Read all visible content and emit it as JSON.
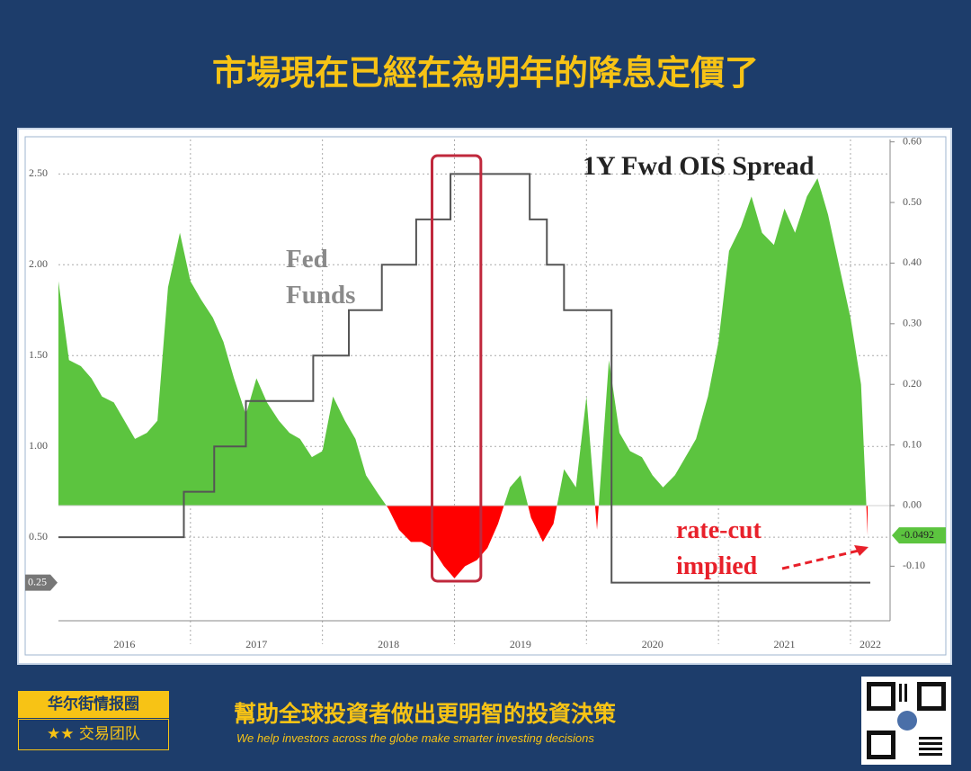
{
  "header": {
    "title": "市場現在已經在為明年的降息定價了"
  },
  "chart_data": {
    "type": "step-area",
    "series": [
      {
        "name": "1Y Fwd OIS Spread",
        "axis": "y2",
        "color": "#5cc43f",
        "negative_color": "#ff0000",
        "x": [
          2016.0,
          2016.08,
          2016.17,
          2016.25,
          2016.33,
          2016.42,
          2016.5,
          2016.58,
          2016.67,
          2016.75,
          2016.83,
          2016.92,
          2017.0,
          2017.08,
          2017.17,
          2017.25,
          2017.33,
          2017.42,
          2017.5,
          2017.58,
          2017.67,
          2017.75,
          2017.83,
          2017.92,
          2018.0,
          2018.08,
          2018.17,
          2018.25,
          2018.33,
          2018.42,
          2018.5,
          2018.58,
          2018.67,
          2018.75,
          2018.83,
          2018.92,
          2019.0,
          2019.08,
          2019.17,
          2019.25,
          2019.33,
          2019.42,
          2019.5,
          2019.58,
          2019.67,
          2019.75,
          2019.83,
          2019.92,
          2020.0,
          2020.08,
          2020.17,
          2020.25,
          2020.33,
          2020.42,
          2020.5,
          2020.58,
          2020.67,
          2020.75,
          2020.83,
          2020.92,
          2021.0,
          2021.08,
          2021.17,
          2021.25,
          2021.33,
          2021.42,
          2021.5,
          2021.58,
          2021.67,
          2021.75,
          2021.83,
          2021.92,
          2022.0,
          2022.08,
          2022.13
        ],
        "values": [
          0.37,
          0.24,
          0.23,
          0.21,
          0.18,
          0.17,
          0.14,
          0.11,
          0.12,
          0.14,
          0.36,
          0.45,
          0.37,
          0.34,
          0.31,
          0.27,
          0.21,
          0.15,
          0.21,
          0.17,
          0.14,
          0.12,
          0.11,
          0.08,
          0.09,
          0.18,
          0.14,
          0.11,
          0.05,
          0.02,
          -0.005,
          -0.04,
          -0.06,
          -0.06,
          -0.07,
          -0.1,
          -0.12,
          -0.1,
          -0.09,
          -0.07,
          -0.03,
          0.03,
          0.05,
          -0.02,
          -0.06,
          -0.03,
          0.06,
          0.03,
          0.18,
          -0.04,
          0.24,
          0.12,
          0.09,
          0.08,
          0.05,
          0.03,
          0.05,
          0.08,
          0.11,
          0.18,
          0.27,
          0.42,
          0.46,
          0.51,
          0.45,
          0.43,
          0.49,
          0.45,
          0.51,
          0.54,
          0.48,
          0.39,
          0.31,
          0.2,
          -0.0492
        ]
      },
      {
        "name": "Fed Funds",
        "axis": "y",
        "color": "#555555",
        "x": [
          2016.0,
          2016.95,
          2017.18,
          2017.42,
          2017.93,
          2018.2,
          2018.45,
          2018.71,
          2018.97,
          2019.57,
          2019.7,
          2019.83,
          2020.19,
          2022.15
        ],
        "values": [
          0.5,
          0.75,
          1.0,
          1.25,
          1.5,
          1.75,
          2.0,
          2.25,
          2.5,
          2.25,
          2.0,
          1.75,
          0.25,
          0.25
        ]
      }
    ],
    "xlim": [
      2016,
      2022.3
    ],
    "xticks": [
      {
        "value": 2016.5,
        "label": "2016"
      },
      {
        "value": 2017.5,
        "label": "2017"
      },
      {
        "value": 2018.5,
        "label": "2018"
      },
      {
        "value": 2019.5,
        "label": "2019"
      },
      {
        "value": 2020.5,
        "label": "2020"
      },
      {
        "value": 2021.5,
        "label": "2021"
      },
      {
        "value": 2022.15,
        "label": "2022"
      }
    ],
    "x_grid_lines": [
      2017,
      2018,
      2019,
      2020,
      2021,
      2022
    ],
    "ylim": [
      0.04,
      2.69
    ],
    "yticks": [
      {
        "value": 0.5,
        "label": "0.50"
      },
      {
        "value": 1.0,
        "label": "1.00"
      },
      {
        "value": 1.5,
        "label": "1.50"
      },
      {
        "value": 2.0,
        "label": "2.00"
      },
      {
        "value": 2.5,
        "label": "2.50"
      }
    ],
    "y2lim": [
      -0.19,
      0.604
    ],
    "y2ticks": [
      {
        "value": 0.6,
        "label": "0.60"
      },
      {
        "value": 0.5,
        "label": "0.50"
      },
      {
        "value": 0.4,
        "label": "0.40"
      },
      {
        "value": 0.3,
        "label": "0.30"
      },
      {
        "value": 0.2,
        "label": "0.20"
      },
      {
        "value": 0.1,
        "label": "0.10"
      },
      {
        "value": 0,
        "label": "0.00"
      },
      {
        "value": -0.1,
        "label": "-0.10"
      }
    ],
    "last_values": [
      {
        "value": 0.25,
        "label": "0.25",
        "axis": "y"
      },
      {
        "value": -0.0492,
        "label": "-0.0492",
        "axis": "y2"
      }
    ],
    "highlight_range": [
      2018.83,
      2019.2
    ],
    "annotation": "rate-cut implied",
    "grid": true
  },
  "footer": {
    "brand": "华尔街情报圈",
    "team": "★★ 交易团队",
    "slogan": "幫助全球投資者做出更明智的投資決策",
    "slogan_en": "We help investors across the globe make smarter investing decisions"
  }
}
